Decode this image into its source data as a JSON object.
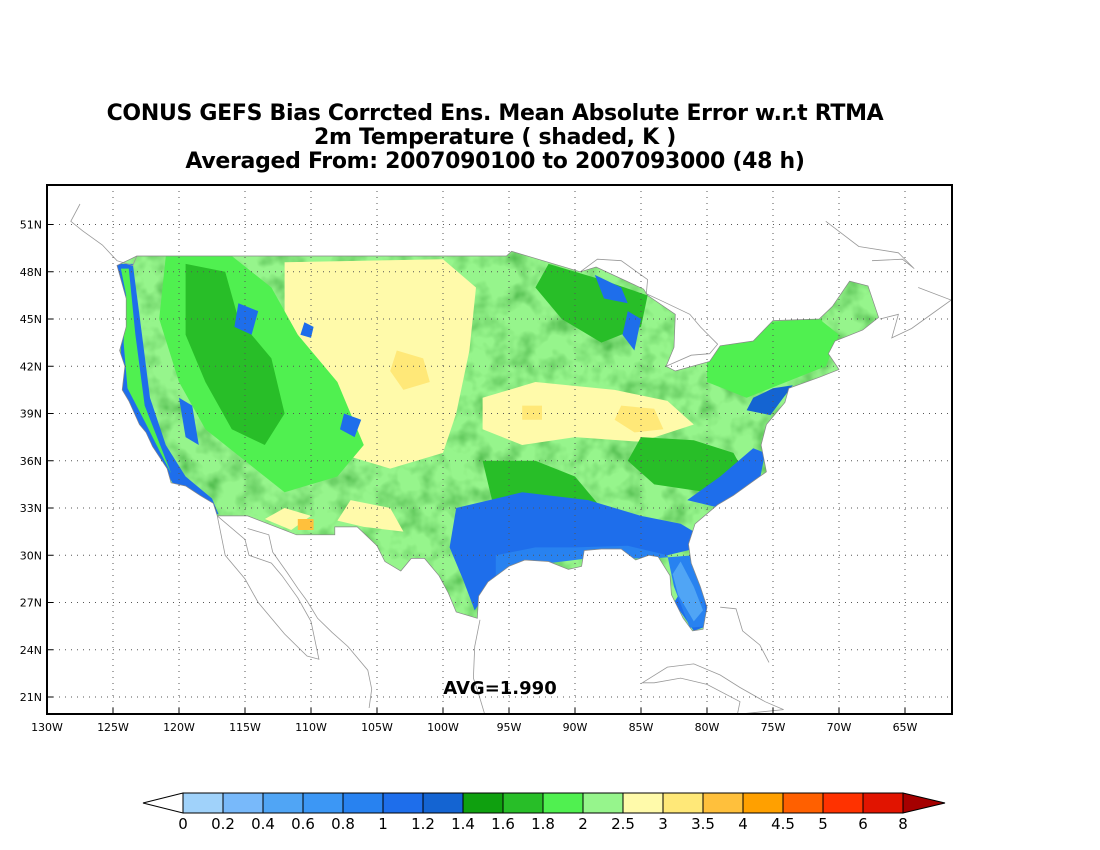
{
  "title": {
    "line1": "CONUS GEFS Bias Corrcted Ens. Mean Absolute Error w.r.t RTMA",
    "line2": "2m Temperature ( shaded, K )",
    "line3": "Averaged From: 2007090100 to 2007093000 (48 h)"
  },
  "annotation": {
    "avg": "AVG=1.990"
  },
  "map": {
    "region": "CONUS",
    "lon_range": [
      -130,
      -62
    ],
    "lat_range": [
      19.5,
      53
    ],
    "gridlines": "dotted",
    "lon_ticks": [
      "130W",
      "125W",
      "120W",
      "115W",
      "110W",
      "105W",
      "100W",
      "95W",
      "90W",
      "85W",
      "80W",
      "75W",
      "70W",
      "65W"
    ],
    "lat_ticks": [
      "21N",
      "24N",
      "27N",
      "30N",
      "33N",
      "36N",
      "39N",
      "42N",
      "45N",
      "48N",
      "51N"
    ]
  },
  "colorbar": {
    "labels": [
      "0",
      "0.2",
      "0.4",
      "0.6",
      "0.8",
      "1",
      "1.2",
      "1.4",
      "1.6",
      "1.8",
      "2",
      "2.5",
      "3",
      "3.5",
      "4",
      "4.5",
      "5",
      "6",
      "8"
    ],
    "colors": [
      "#a0d2fa",
      "#78b9fa",
      "#50a5f5",
      "#3c97f5",
      "#2882f0",
      "#1e6eeb",
      "#1464d2",
      "#0fa00f",
      "#28be28",
      "#50f050",
      "#96f58c",
      "#fffaaa",
      "#ffe878",
      "#ffc03c",
      "#ffa000",
      "#ff6000",
      "#ff3200",
      "#e11400",
      "#c00000"
    ],
    "under_color": "#ffffff",
    "over_color": "#a50000"
  }
}
